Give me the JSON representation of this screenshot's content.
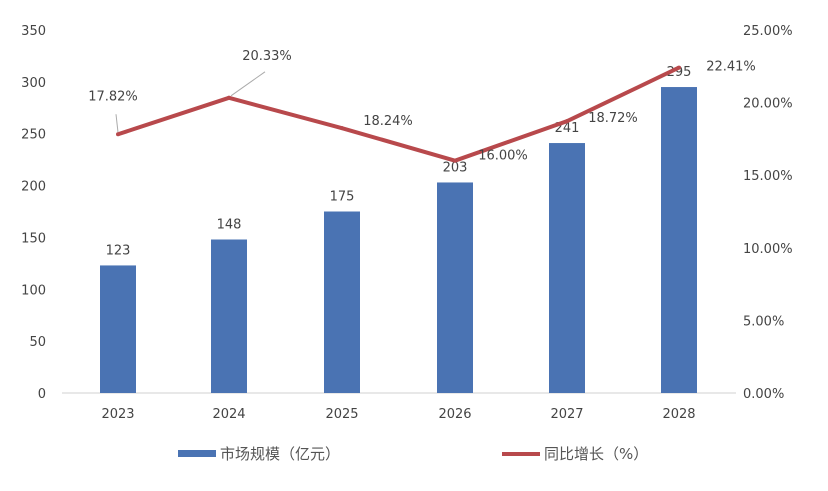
{
  "chart_data": {
    "type": "bar+line",
    "categories": [
      "2023",
      "2024",
      "2025",
      "2026",
      "2027",
      "2028"
    ],
    "series": [
      {
        "name": "市场规模（亿元）",
        "type": "bar",
        "axis": "left",
        "values": [
          123,
          148,
          175,
          203,
          241,
          295
        ],
        "color": "#4472c4"
      },
      {
        "name": "同比增长（%）",
        "type": "line",
        "axis": "right",
        "values": [
          17.82,
          20.33,
          18.24,
          16.0,
          18.72,
          22.41
        ],
        "color": "#c0504d"
      }
    ],
    "bar_labels": [
      "123",
      "148",
      "175",
      "203",
      "241",
      "295"
    ],
    "line_labels": [
      "17.82%",
      "20.33%",
      "18.24%",
      "16.00%",
      "18.72%",
      "22.41%"
    ],
    "ylim_left": [
      0,
      350
    ],
    "yticks_left": [
      "0",
      "50",
      "100",
      "150",
      "200",
      "250",
      "300",
      "350"
    ],
    "ylim_right": [
      0,
      25
    ],
    "yticks_right": [
      "0.00%",
      "5.00%",
      "10.00%",
      "15.00%",
      "20.00%",
      "25.00%"
    ],
    "grid": false,
    "legend_position": "bottom"
  }
}
